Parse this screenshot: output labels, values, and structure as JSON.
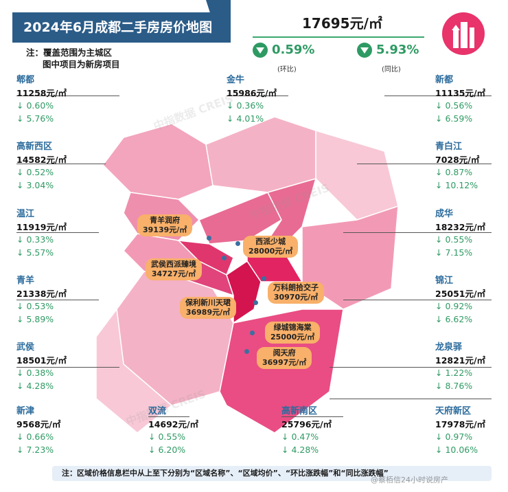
{
  "title": "2024年6月成都二手房房价地图",
  "note_top": [
    "注：覆盖范围为主城区",
    "图中项目为新房项目"
  ],
  "average": {
    "price": "17695元/㎡",
    "mom": "0.59%",
    "mom_label": "(环比)",
    "yoy": "5.93%",
    "yoy_label": "(同比)",
    "color_down": "#2e9a63"
  },
  "districts": [
    {
      "name": "郫都",
      "price": "11258元/㎡",
      "mom": "↓ 0.60%",
      "yoy": "↓ 5.76%"
    },
    {
      "name": "高新西区",
      "price": "14582元/㎡",
      "mom": "↓ 0.52%",
      "yoy": "↓ 3.04%"
    },
    {
      "name": "温江",
      "price": "11919元/㎡",
      "mom": "↓ 0.33%",
      "yoy": "↓ 5.57%"
    },
    {
      "name": "青羊",
      "price": "21338元/㎡",
      "mom": "↓ 0.53%",
      "yoy": "↓ 5.89%"
    },
    {
      "name": "武侯",
      "price": "18501元/㎡",
      "mom": "↓ 0.38%",
      "yoy": "↓ 4.28%"
    },
    {
      "name": "新津",
      "price": "9568元/㎡",
      "mom": "↓ 0.66%",
      "yoy": "↓ 7.23%"
    },
    {
      "name": "金牛",
      "price": "15986元/㎡",
      "mom": "↓ 0.36%",
      "yoy": "↓ 4.01%"
    },
    {
      "name": "双流",
      "price": "14692元/㎡",
      "mom": "↓ 0.55%",
      "yoy": "↓ 6.20%"
    },
    {
      "name": "高新南区",
      "price": "25796元/㎡",
      "mom": "↓ 0.47%",
      "yoy": "↓ 4.28%"
    },
    {
      "name": "新都",
      "price": "11135元/㎡",
      "mom": "↓ 0.56%",
      "yoy": "↓ 6.59%"
    },
    {
      "name": "青白江",
      "price": "7028元/㎡",
      "mom": "↓ 0.87%",
      "yoy": "↓ 10.12%"
    },
    {
      "name": "成华",
      "price": "18232元/㎡",
      "mom": "↓ 0.55%",
      "yoy": "↓ 7.15%"
    },
    {
      "name": "锦江",
      "price": "25051元/㎡",
      "mom": "↓ 0.92%",
      "yoy": "↓ 6.62%"
    },
    {
      "name": "龙泉驿",
      "price": "12821元/㎡",
      "mom": "↓ 1.22%",
      "yoy": "↓ 8.76%"
    },
    {
      "name": "天府新区",
      "price": "17978元/㎡",
      "mom": "↓ 0.97%",
      "yoy": "↓ 10.06%"
    }
  ],
  "projects": [
    {
      "name": "青羊润府",
      "price": "39139元/㎡"
    },
    {
      "name": "西派少城",
      "price": "28000元/㎡"
    },
    {
      "name": "武侯西派臻境",
      "price": "34727元/㎡"
    },
    {
      "name": "万科朗拾交子",
      "price": "30970元/㎡"
    },
    {
      "name": "保利新川天珺",
      "price": "36989元/㎡"
    },
    {
      "name": "绿城锦海棠",
      "price": "25000元/㎡"
    },
    {
      "name": "阅天府",
      "price": "36997元/㎡"
    }
  ],
  "watermark": "中指数据 CREIS",
  "bottom_note": "注：区域价格信息栏中从上至下分别为“区域名称”、“区域均价”、“环比涨跌幅”和“同比涨跌幅”",
  "signature": "@蔡栢信24小时说房产"
}
